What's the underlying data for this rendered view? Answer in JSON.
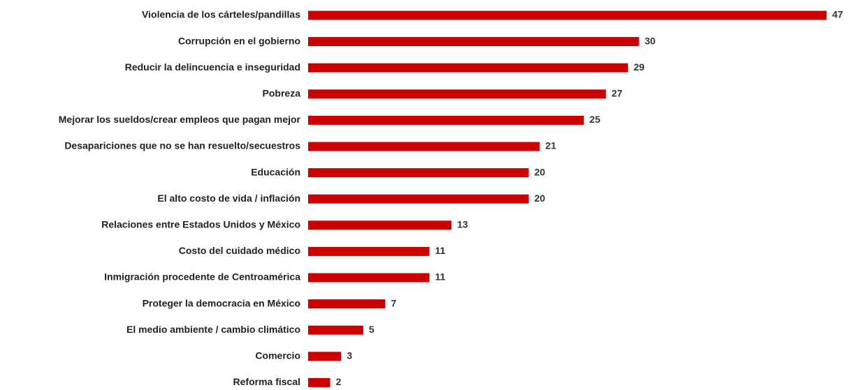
{
  "chart_data": {
    "type": "bar",
    "orientation": "horizontal",
    "categories": [
      "Violencia de los cárteles/pandillas",
      "Corrupción en el gobierno",
      "Reducir la delincuencia e inseguridad",
      "Pobreza",
      "Mejorar los sueldos/crear empleos que pagan mejor",
      "Desapariciones que no se han resuelto/secuestros",
      "Educación",
      "El alto costo de vida / inflación",
      "Relaciones entre Estados Unidos y México",
      "Costo del cuidado médico",
      "Inmigración procedente de Centroamérica",
      "Proteger la democracia en México",
      "El medio ambiente / cambio climático",
      "Comercio",
      "Reforma fiscal"
    ],
    "values": [
      47,
      30,
      29,
      27,
      25,
      21,
      20,
      20,
      13,
      11,
      11,
      7,
      5,
      3,
      2
    ],
    "bar_color": "#cc0000",
    "xlim": [
      0,
      47
    ],
    "grid": false,
    "legend": "none",
    "title": "",
    "xlabel": "",
    "ylabel": ""
  }
}
